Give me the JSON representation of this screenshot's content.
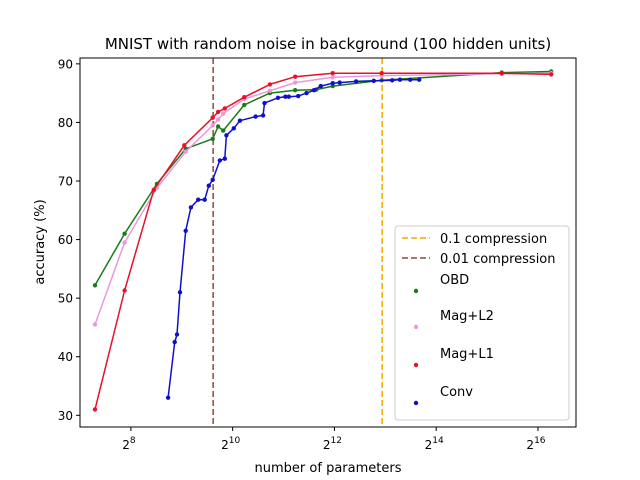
{
  "chart_data": {
    "type": "line",
    "title": "MNIST with random noise in background (100 hidden units)",
    "xlabel": "number of parameters",
    "ylabel": "accuracy (%)",
    "x_scale": "log2",
    "xlim": [
      128,
      110000
    ],
    "ylim": [
      28,
      91
    ],
    "x_ticks": [
      {
        "value": 256,
        "base": "2",
        "exp": "8"
      },
      {
        "value": 1024,
        "base": "2",
        "exp": "10"
      },
      {
        "value": 4096,
        "base": "2",
        "exp": "12"
      },
      {
        "value": 16384,
        "base": "2",
        "exp": "14"
      },
      {
        "value": 65536,
        "base": "2",
        "exp": "16"
      }
    ],
    "y_ticks": [
      30,
      40,
      50,
      60,
      70,
      80,
      90
    ],
    "vlines": [
      {
        "name": "0.1 compression",
        "x": 7850,
        "color": "#f5a800"
      },
      {
        "name": "0.01 compression",
        "x": 785,
        "color": "#8b4a3a"
      }
    ],
    "series": [
      {
        "name": "OBD",
        "color": "#1a7a1a",
        "points": [
          [
            157,
            52.2
          ],
          [
            235,
            61
          ],
          [
            365,
            69.5
          ],
          [
            540,
            75.5
          ],
          [
            780,
            77.2
          ],
          [
            840,
            79.3
          ],
          [
            900,
            78.6
          ],
          [
            1200,
            83
          ],
          [
            1700,
            85
          ],
          [
            2400,
            85.5
          ],
          [
            3200,
            85.6
          ],
          [
            4000,
            86.2
          ],
          [
            7800,
            87.2
          ],
          [
            40000,
            88.5
          ],
          [
            78500,
            88.7
          ]
        ]
      },
      {
        "name": "Mag+L2",
        "color": "#e89ad8",
        "points": [
          [
            157,
            45.5
          ],
          [
            235,
            59.5
          ],
          [
            365,
            68.8
          ],
          [
            540,
            75
          ],
          [
            780,
            79.5
          ],
          [
            840,
            80.5
          ],
          [
            900,
            81.5
          ],
          [
            1200,
            84
          ],
          [
            1700,
            85.4
          ],
          [
            2400,
            86.8
          ],
          [
            4000,
            87.7
          ],
          [
            7800,
            88
          ],
          [
            40000,
            88.3
          ],
          [
            78500,
            88.4
          ]
        ]
      },
      {
        "name": "Mag+L1",
        "color": "#e8102a",
        "points": [
          [
            157,
            31
          ],
          [
            235,
            51.3
          ],
          [
            350,
            68.5
          ],
          [
            530,
            76.1
          ],
          [
            780,
            80.8
          ],
          [
            840,
            81.8
          ],
          [
            920,
            82.4
          ],
          [
            1200,
            84.3
          ],
          [
            1700,
            86.5
          ],
          [
            2400,
            87.8
          ],
          [
            4000,
            88.4
          ],
          [
            7800,
            88.4
          ],
          [
            40000,
            88.4
          ],
          [
            78500,
            88.2
          ]
        ]
      },
      {
        "name": "Conv",
        "color": "#1010cc",
        "points": [
          [
            425,
            33
          ],
          [
            465,
            42.5
          ],
          [
            480,
            43.8
          ],
          [
            500,
            51
          ],
          [
            540,
            61.5
          ],
          [
            580,
            65.5
          ],
          [
            640,
            66.8
          ],
          [
            700,
            66.8
          ],
          [
            740,
            69.2
          ],
          [
            780,
            70.2
          ],
          [
            860,
            73.5
          ],
          [
            920,
            73.8
          ],
          [
            940,
            77.8
          ],
          [
            1040,
            79
          ],
          [
            1130,
            80.3
          ],
          [
            1400,
            81
          ],
          [
            1550,
            81.2
          ],
          [
            1580,
            83.3
          ],
          [
            1900,
            84.2
          ],
          [
            2100,
            84.4
          ],
          [
            2200,
            84.4
          ],
          [
            2500,
            84.5
          ],
          [
            2800,
            85
          ],
          [
            3100,
            85.5
          ],
          [
            3400,
            86.2
          ],
          [
            4000,
            86.7
          ],
          [
            4400,
            86.8
          ],
          [
            5500,
            87
          ],
          [
            7000,
            87.1
          ],
          [
            9000,
            87.2
          ],
          [
            10000,
            87.3
          ],
          [
            11500,
            87.3
          ],
          [
            13000,
            87.3
          ]
        ]
      }
    ],
    "legend_position": "lower-right",
    "grid": false
  }
}
